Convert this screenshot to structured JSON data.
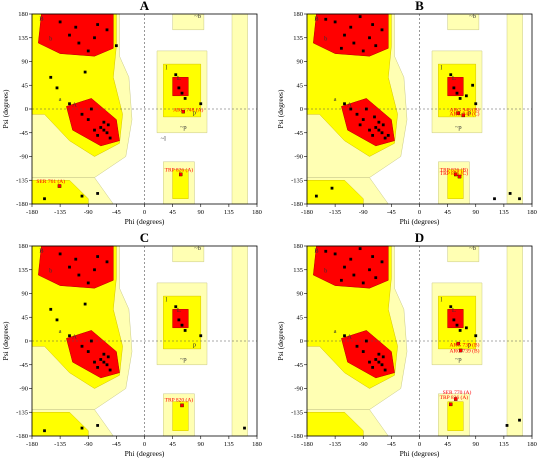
{
  "chart_data": [
    {
      "type": "scatter",
      "panel_label": "A",
      "xlabel": "Phi (degrees)",
      "ylabel": "Psi (degrees)",
      "xlim": [
        -180,
        180
      ],
      "ylim": [
        -180,
        180
      ],
      "xticks": [
        "-180",
        "-135",
        "-90",
        "-45",
        "0",
        "45",
        "90",
        "135",
        "180"
      ],
      "yticks": [
        "180",
        "135",
        "90",
        "45",
        "0",
        "-45",
        "-90",
        "-135",
        "-180"
      ],
      "region_labels": [
        {
          "text": "B",
          "x": -165,
          "y": 168
        },
        {
          "text": "b",
          "x": -150,
          "y": 130
        },
        {
          "text": "a",
          "x": -135,
          "y": 15
        },
        {
          "text": "A",
          "x": -112,
          "y": 5
        },
        {
          "text": "L",
          "x": 55,
          "y": 55
        },
        {
          "text": "l",
          "x": 35,
          "y": 75
        },
        {
          "text": "~b",
          "x": 85,
          "y": 172
        },
        {
          "text": "~p",
          "x": 62,
          "y": -38
        },
        {
          "text": "~l",
          "x": 30,
          "y": -60
        },
        {
          "text": "p",
          "x": 80,
          "y": -10
        }
      ],
      "annotations": [
        {
          "text": "ARG 748 (A)",
          "x": 70,
          "y": -5
        },
        {
          "text": "TRP 826 (A)",
          "x": 55,
          "y": -118
        },
        {
          "text": "SER 761 (A)",
          "x": -150,
          "y": -140
        }
      ],
      "outliers": [
        {
          "x": 62,
          "y": -5
        },
        {
          "x": 58,
          "y": -124
        },
        {
          "x": -136,
          "y": -146
        }
      ],
      "residues": [
        {
          "x": -75,
          "y": 160
        },
        {
          "x": -120,
          "y": 140
        },
        {
          "x": -105,
          "y": 125
        },
        {
          "x": -135,
          "y": 165
        },
        {
          "x": -60,
          "y": 150
        },
        {
          "x": -90,
          "y": 110
        },
        {
          "x": -110,
          "y": 155
        },
        {
          "x": -80,
          "y": 135
        },
        {
          "x": -65,
          "y": -40
        },
        {
          "x": -60,
          "y": -45
        },
        {
          "x": -70,
          "y": -35
        },
        {
          "x": -58,
          "y": -30
        },
        {
          "x": -75,
          "y": -50
        },
        {
          "x": -90,
          "y": -20
        },
        {
          "x": -100,
          "y": -10
        },
        {
          "x": -55,
          "y": -55
        },
        {
          "x": -65,
          "y": -25
        },
        {
          "x": -80,
          "y": -40
        },
        {
          "x": -120,
          "y": 10
        },
        {
          "x": -85,
          "y": 0
        },
        {
          "x": 55,
          "y": 40
        },
        {
          "x": 60,
          "y": 30
        },
        {
          "x": 65,
          "y": 20
        },
        {
          "x": 90,
          "y": 10
        },
        {
          "x": 50,
          "y": 65
        },
        {
          "x": -150,
          "y": 60
        },
        {
          "x": -160,
          "y": -170
        },
        {
          "x": -100,
          "y": -165
        },
        {
          "x": -75,
          "y": -160
        },
        {
          "x": -140,
          "y": 40
        },
        {
          "x": -45,
          "y": 120
        },
        {
          "x": -95,
          "y": 70
        }
      ],
      "grid": false
    },
    {
      "type": "scatter",
      "panel_label": "B",
      "xlabel": "Phi (degrees)",
      "ylabel": "Psi (degrees)",
      "xlim": [
        -180,
        180
      ],
      "ylim": [
        -180,
        180
      ],
      "xticks": [
        "-180",
        "-135",
        "-90",
        "-45",
        "0",
        "45",
        "90",
        "135",
        "180"
      ],
      "yticks": [
        "180",
        "135",
        "90",
        "45",
        "0",
        "-45",
        "-90",
        "-135",
        "-180"
      ],
      "region_labels": [
        {
          "text": "B",
          "x": -165,
          "y": 168
        },
        {
          "text": "b",
          "x": -150,
          "y": 130
        },
        {
          "text": "a",
          "x": -135,
          "y": 15
        },
        {
          "text": "A",
          "x": -112,
          "y": 5
        },
        {
          "text": "L",
          "x": 55,
          "y": 55
        },
        {
          "text": "l",
          "x": 35,
          "y": 75
        },
        {
          "text": "~b",
          "x": 85,
          "y": 172
        },
        {
          "text": "~p",
          "x": 62,
          "y": -38
        },
        {
          "text": "p",
          "x": 80,
          "y": -10
        }
      ],
      "annotations": [
        {
          "text": "ARG 948 (B)",
          "x": 72,
          "y": -5
        },
        {
          "text": "ARG 948 (C)",
          "x": 72,
          "y": -12
        },
        {
          "text": "TRP 826 (B)",
          "x": 55,
          "y": -118
        },
        {
          "text": "TRP 826 (C)",
          "x": 55,
          "y": -125
        }
      ],
      "outliers": [
        {
          "x": 62,
          "y": -8
        },
        {
          "x": 70,
          "y": -12
        },
        {
          "x": 58,
          "y": -124
        },
        {
          "x": 64,
          "y": -128
        }
      ],
      "residues": [
        {
          "x": -75,
          "y": 160
        },
        {
          "x": -120,
          "y": 140
        },
        {
          "x": -105,
          "y": 125
        },
        {
          "x": -135,
          "y": 165
        },
        {
          "x": -60,
          "y": 150
        },
        {
          "x": -90,
          "y": 110
        },
        {
          "x": -110,
          "y": 155
        },
        {
          "x": -80,
          "y": 135
        },
        {
          "x": -150,
          "y": 170
        },
        {
          "x": -95,
          "y": 175
        },
        {
          "x": -125,
          "y": 115
        },
        {
          "x": -70,
          "y": 120
        },
        {
          "x": -65,
          "y": -40
        },
        {
          "x": -60,
          "y": -45
        },
        {
          "x": -70,
          "y": -35
        },
        {
          "x": -58,
          "y": -30
        },
        {
          "x": -75,
          "y": -50
        },
        {
          "x": -90,
          "y": -20
        },
        {
          "x": -100,
          "y": -10
        },
        {
          "x": -55,
          "y": -55
        },
        {
          "x": -65,
          "y": -25
        },
        {
          "x": -80,
          "y": -40
        },
        {
          "x": -120,
          "y": 10
        },
        {
          "x": -85,
          "y": 0
        },
        {
          "x": -95,
          "y": -30
        },
        {
          "x": -50,
          "y": -50
        },
        {
          "x": -110,
          "y": 0
        },
        {
          "x": -72,
          "y": -15
        },
        {
          "x": 55,
          "y": 40
        },
        {
          "x": 60,
          "y": 30
        },
        {
          "x": 65,
          "y": 20
        },
        {
          "x": 90,
          "y": 10
        },
        {
          "x": 50,
          "y": 65
        },
        {
          "x": 75,
          "y": 25
        },
        {
          "x": 85,
          "y": 45
        },
        {
          "x": 145,
          "y": -160
        },
        {
          "x": 160,
          "y": -170
        },
        {
          "x": -165,
          "y": -165
        },
        {
          "x": -140,
          "y": -150
        },
        {
          "x": 120,
          "y": -170
        }
      ],
      "grid": false
    },
    {
      "type": "scatter",
      "panel_label": "C",
      "xlabel": "Phi (degrees)",
      "ylabel": "Psi (degrees)",
      "xlim": [
        -180,
        180
      ],
      "ylim": [
        -180,
        180
      ],
      "xticks": [
        "-180",
        "-135",
        "-90",
        "-45",
        "0",
        "45",
        "90",
        "135",
        "180"
      ],
      "yticks": [
        "180",
        "135",
        "90",
        "45",
        "0",
        "-45",
        "-90",
        "-135",
        "-180"
      ],
      "region_labels": [
        {
          "text": "B",
          "x": -165,
          "y": 168
        },
        {
          "text": "b",
          "x": -150,
          "y": 130
        },
        {
          "text": "a",
          "x": -135,
          "y": 15
        },
        {
          "text": "A",
          "x": -112,
          "y": 5
        },
        {
          "text": "L",
          "x": 55,
          "y": 55
        },
        {
          "text": "l",
          "x": 35,
          "y": 75
        },
        {
          "text": "~b",
          "x": 85,
          "y": 172
        },
        {
          "text": "~p",
          "x": 62,
          "y": -38
        },
        {
          "text": "p",
          "x": 80,
          "y": -10
        }
      ],
      "annotations": [
        {
          "text": "TRP 820 (A)",
          "x": 55,
          "y": -115
        }
      ],
      "outliers": [
        {
          "x": 60,
          "y": -122
        }
      ],
      "residues": [
        {
          "x": -75,
          "y": 160
        },
        {
          "x": -120,
          "y": 140
        },
        {
          "x": -105,
          "y": 125
        },
        {
          "x": -135,
          "y": 165
        },
        {
          "x": -60,
          "y": 150
        },
        {
          "x": -90,
          "y": 110
        },
        {
          "x": -110,
          "y": 155
        },
        {
          "x": -80,
          "y": 135
        },
        {
          "x": -65,
          "y": -40
        },
        {
          "x": -60,
          "y": -45
        },
        {
          "x": -70,
          "y": -35
        },
        {
          "x": -58,
          "y": -30
        },
        {
          "x": -75,
          "y": -50
        },
        {
          "x": -90,
          "y": -20
        },
        {
          "x": -100,
          "y": -10
        },
        {
          "x": -55,
          "y": -55
        },
        {
          "x": -65,
          "y": -25
        },
        {
          "x": -80,
          "y": -40
        },
        {
          "x": -120,
          "y": 10
        },
        {
          "x": -85,
          "y": 0
        },
        {
          "x": 55,
          "y": 40
        },
        {
          "x": 60,
          "y": 30
        },
        {
          "x": 65,
          "y": 20
        },
        {
          "x": 90,
          "y": 10
        },
        {
          "x": 50,
          "y": 65
        },
        {
          "x": -150,
          "y": 60
        },
        {
          "x": -160,
          "y": -170
        },
        {
          "x": -100,
          "y": -165
        },
        {
          "x": -75,
          "y": -160
        },
        {
          "x": -140,
          "y": 40
        },
        {
          "x": 160,
          "y": -165
        },
        {
          "x": -95,
          "y": 70
        }
      ],
      "grid": false
    },
    {
      "type": "scatter",
      "panel_label": "D",
      "xlabel": "Phi (degrees)",
      "ylabel": "Psi (degrees)",
      "xlim": [
        -180,
        180
      ],
      "ylim": [
        -180,
        180
      ],
      "xticks": [
        "-180",
        "-135",
        "-90",
        "-45",
        "0",
        "45",
        "90",
        "135",
        "180"
      ],
      "yticks": [
        "180",
        "135",
        "90",
        "45",
        "0",
        "-45",
        "-90",
        "-135",
        "-180"
      ],
      "region_labels": [
        {
          "text": "B",
          "x": -165,
          "y": 168
        },
        {
          "text": "b",
          "x": -150,
          "y": 130
        },
        {
          "text": "a",
          "x": -135,
          "y": 15
        },
        {
          "text": "A",
          "x": -112,
          "y": 5
        },
        {
          "text": "L",
          "x": 55,
          "y": 55
        },
        {
          "text": "l",
          "x": 35,
          "y": 75
        },
        {
          "text": "~b",
          "x": 85,
          "y": 172
        },
        {
          "text": "~p",
          "x": 62,
          "y": -38
        },
        {
          "text": "p",
          "x": 80,
          "y": -10
        }
      ],
      "annotations": [
        {
          "text": "ARG 739 (B)",
          "x": 72,
          "y": -10
        },
        {
          "text": "ARG 739 (B)",
          "x": 72,
          "y": -22
        },
        {
          "text": "SER 770 (A)",
          "x": 60,
          "y": -100
        },
        {
          "text": "TRP 826 (A)",
          "x": 55,
          "y": -110
        }
      ],
      "outliers": [
        {
          "x": 62,
          "y": -5
        },
        {
          "x": 66,
          "y": -18
        },
        {
          "x": 58,
          "y": -110
        },
        {
          "x": 50,
          "y": -120
        }
      ],
      "residues": [
        {
          "x": -75,
          "y": 160
        },
        {
          "x": -120,
          "y": 140
        },
        {
          "x": -105,
          "y": 125
        },
        {
          "x": -135,
          "y": 165
        },
        {
          "x": -60,
          "y": 150
        },
        {
          "x": -90,
          "y": 110
        },
        {
          "x": -110,
          "y": 155
        },
        {
          "x": -80,
          "y": 135
        },
        {
          "x": -150,
          "y": 170
        },
        {
          "x": -95,
          "y": 175
        },
        {
          "x": -125,
          "y": 115
        },
        {
          "x": -70,
          "y": 120
        },
        {
          "x": -65,
          "y": -40
        },
        {
          "x": -60,
          "y": -45
        },
        {
          "x": -70,
          "y": -35
        },
        {
          "x": -58,
          "y": -30
        },
        {
          "x": -75,
          "y": -50
        },
        {
          "x": -90,
          "y": -20
        },
        {
          "x": -100,
          "y": -10
        },
        {
          "x": -55,
          "y": -55
        },
        {
          "x": -65,
          "y": -25
        },
        {
          "x": -80,
          "y": -40
        },
        {
          "x": -120,
          "y": 10
        },
        {
          "x": -85,
          "y": 0
        },
        {
          "x": 55,
          "y": 40
        },
        {
          "x": 60,
          "y": 30
        },
        {
          "x": 65,
          "y": 20
        },
        {
          "x": 90,
          "y": 10
        },
        {
          "x": 50,
          "y": 65
        },
        {
          "x": 75,
          "y": 25
        },
        {
          "x": 140,
          "y": -160
        },
        {
          "x": 160,
          "y": -150
        }
      ],
      "grid": false
    }
  ],
  "colors": {
    "core": "#ff0000",
    "allowed": "#ffff00",
    "generous": "#ffffb3",
    "outlier": "#ff0000",
    "point": "#000000",
    "annotation": "#ff0000"
  }
}
